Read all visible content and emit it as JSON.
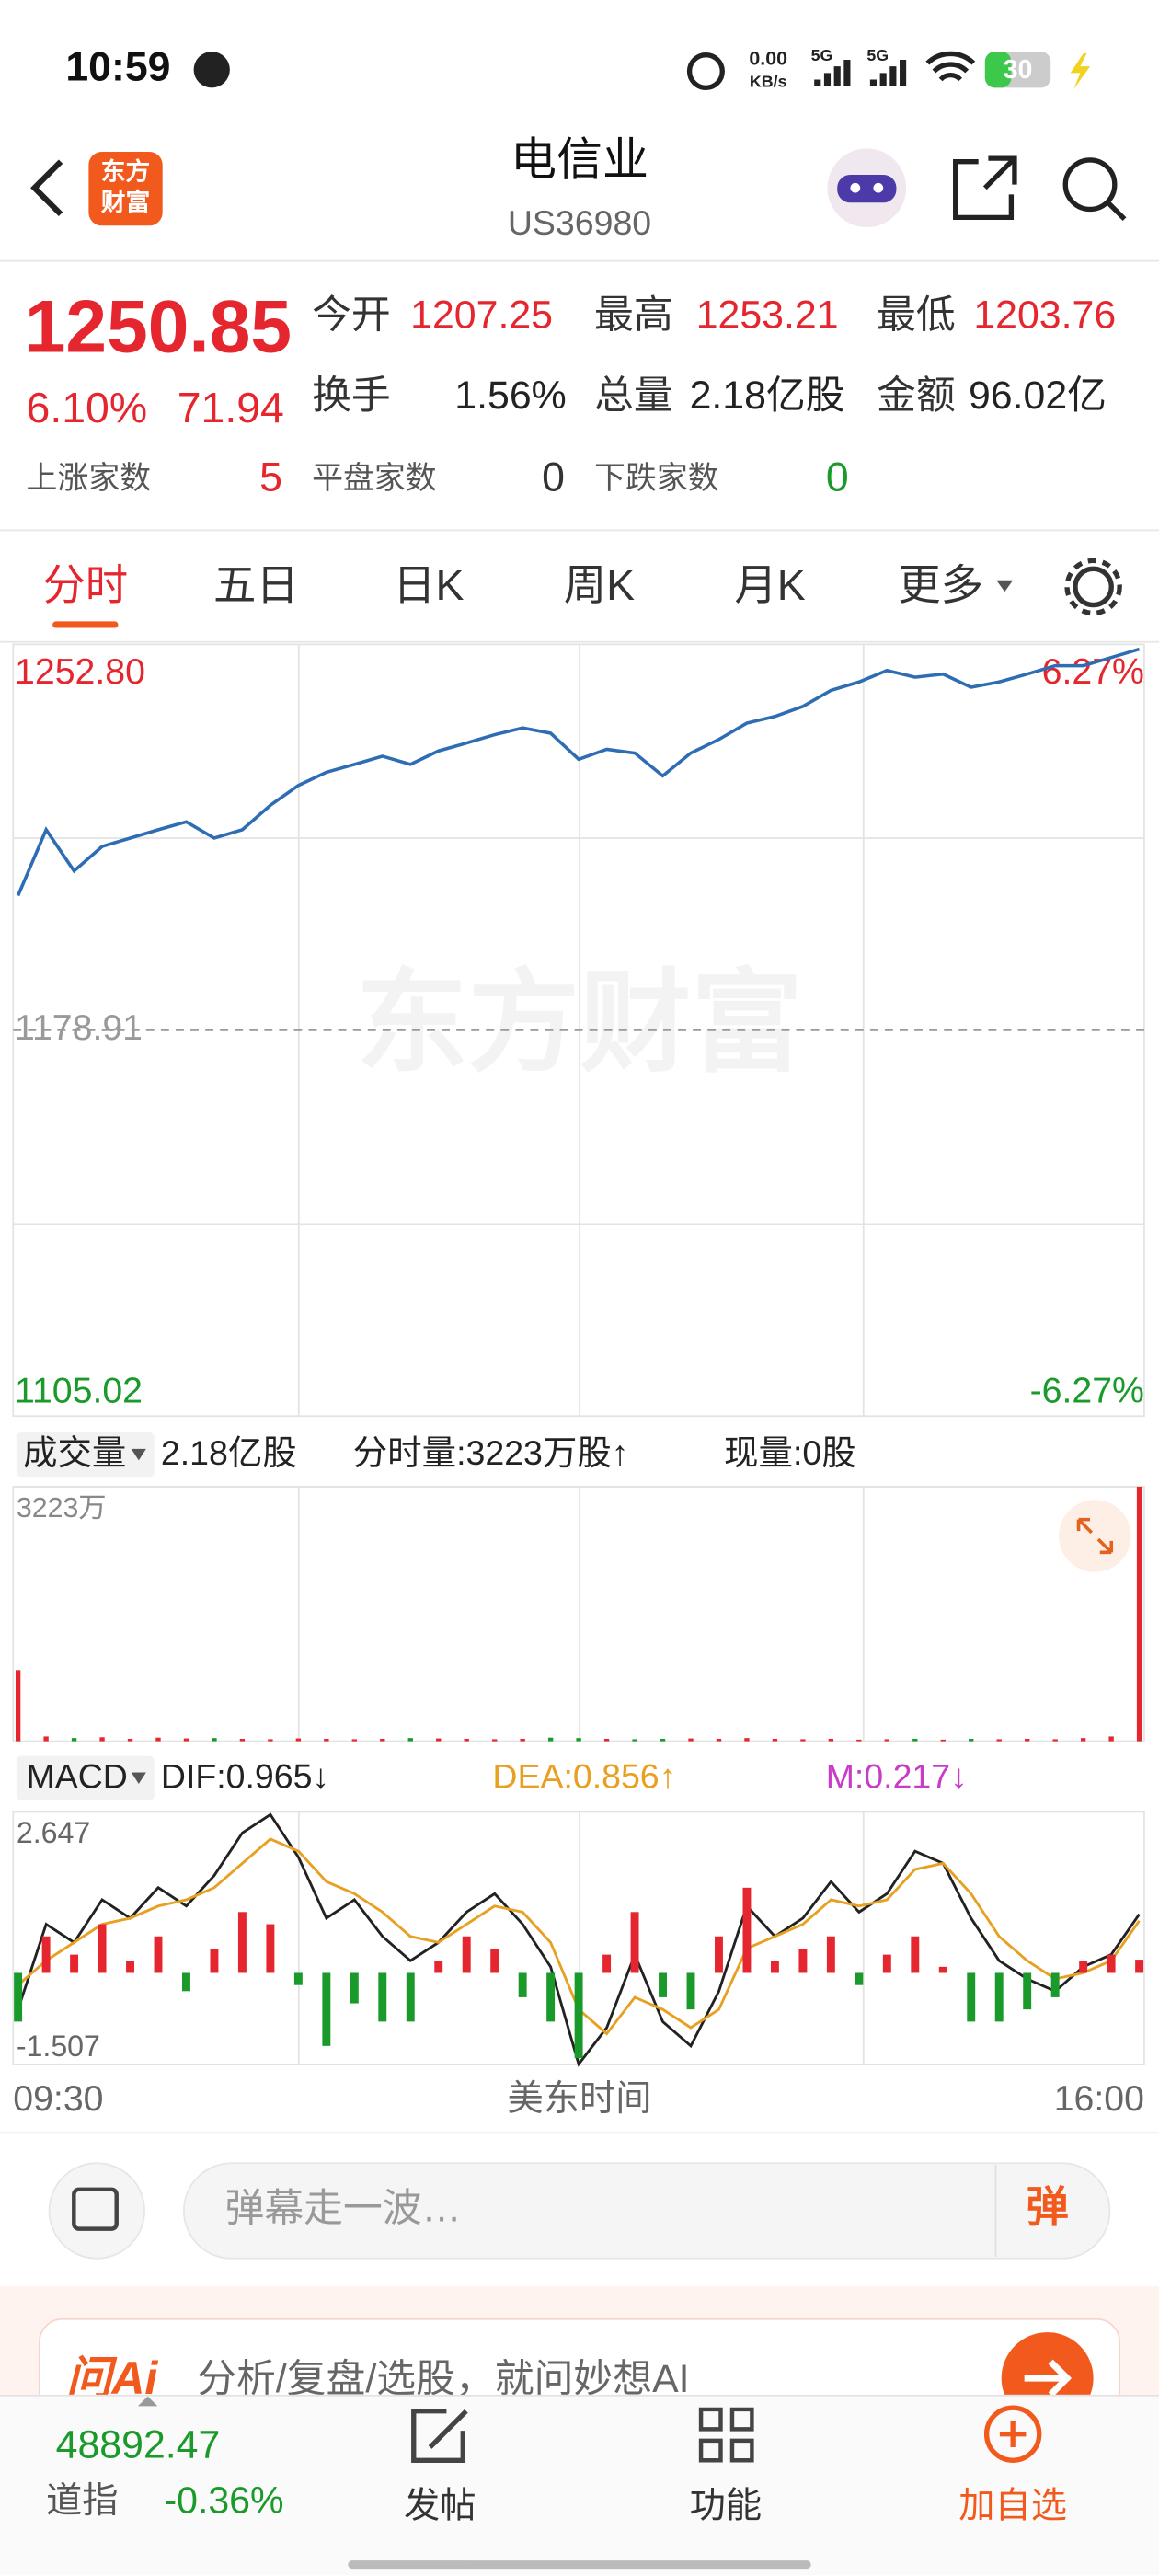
{
  "status": {
    "time": "10:59",
    "speed": "0.00",
    "speed_unit": "KB/s",
    "net1": "5G",
    "net2": "5G",
    "battery": "30"
  },
  "header": {
    "logo": [
      "东方",
      "财富"
    ],
    "title": "电信业",
    "code": "US36980"
  },
  "quote": {
    "price": "1250.85",
    "change_pct": "6.10%",
    "change": "71.94",
    "fields": [
      {
        "label": "今开",
        "value": "1207.25"
      },
      {
        "label": "最高",
        "value": "1253.21"
      },
      {
        "label": "最低",
        "value": "1203.76"
      },
      {
        "label": "换手",
        "value": "1.56%"
      },
      {
        "label": "总量",
        "value": "2.18亿股"
      },
      {
        "label": "金额",
        "value": "96.02亿"
      }
    ],
    "breadth": [
      {
        "label": "上涨家数",
        "value": "5"
      },
      {
        "label": "平盘家数",
        "value": "0"
      },
      {
        "label": "下跌家数",
        "value": "0"
      }
    ]
  },
  "tabs": [
    "分时",
    "五日",
    "日K",
    "周K",
    "月K",
    "更多"
  ],
  "chart_data": [
    {
      "type": "line",
      "watermark": "东方财富",
      "color": "#2e6db4",
      "grid": true,
      "ylim": [
        1105.02,
        1252.8
      ],
      "yticks": [
        {
          "value": 1252.8,
          "label": "1252.80"
        },
        1178.91,
        1105.02
      ],
      "y2lim": [
        -6.27,
        6.27
      ],
      "y2ticks": [
        {
          "value": 6.27,
          "label": "6.27%"
        },
        {
          "value": -6.27,
          "label": "-6.27%"
        }
      ],
      "values": [
        1204.7,
        1217.3,
        1209.4,
        1214.1,
        1215.7,
        1217.3,
        1218.8,
        1215.7,
        1217.3,
        1222.0,
        1225.8,
        1228.3,
        1229.8,
        1231.4,
        1229.8,
        1232.4,
        1233.9,
        1235.5,
        1236.8,
        1235.8,
        1230.8,
        1232.7,
        1232.0,
        1227.6,
        1232.0,
        1234.6,
        1237.7,
        1239.0,
        1240.9,
        1244.0,
        1245.6,
        1247.8,
        1246.5,
        1247.1,
        1244.6,
        1245.6,
        1247.1,
        1248.7,
        1248.7,
        1250.3,
        1251.9
      ]
    },
    {
      "type": "bar",
      "header": [
        "成交量",
        "2.18亿股",
        "分时量:3223万股↑",
        "现量:0股"
      ],
      "up_color": "#e5262e",
      "down_color": "#1a9a2a",
      "ylim": [
        0,
        3223
      ],
      "yticks": [
        {
          "value": 3223,
          "label": "3223万"
        }
      ],
      "values": [
        900,
        60,
        40,
        50,
        30,
        45,
        35,
        40,
        30,
        25,
        35,
        30,
        25,
        30,
        40,
        35,
        30,
        25,
        30,
        45,
        40,
        30,
        25,
        30,
        35,
        30,
        40,
        30,
        25,
        30,
        20,
        25,
        30,
        20,
        30,
        25,
        30,
        25,
        40,
        60,
        3223
      ]
    },
    {
      "type": "macd",
      "header": [
        "MACD",
        "DIF:0.965↓",
        "DEA:0.856↑",
        "M:0.217↓"
      ],
      "ylim": [
        -1.507,
        2.647
      ],
      "yticks": [
        2.647,
        -1.507
      ],
      "series": [
        {
          "name": "DIF",
          "color": "#222222",
          "values": [
            -0.6,
            0.8,
            0.5,
            1.2,
            0.9,
            1.4,
            1.1,
            1.6,
            2.3,
            2.6,
            1.9,
            0.9,
            1.2,
            0.6,
            0.2,
            0.5,
            1.0,
            1.3,
            0.8,
            0.1,
            -1.5,
            -0.9,
            0.3,
            -0.8,
            -1.2,
            -0.3,
            1.1,
            0.6,
            0.9,
            1.5,
            1.0,
            1.3,
            2.0,
            1.8,
            0.9,
            0.2,
            -0.1,
            -0.3,
            0.1,
            0.3,
            0.965
          ]
        },
        {
          "name": "DEA",
          "color": "#e8a020",
          "values": [
            -0.2,
            0.2,
            0.5,
            0.8,
            0.9,
            1.1,
            1.2,
            1.4,
            1.8,
            2.2,
            2.0,
            1.5,
            1.3,
            1.0,
            0.6,
            0.5,
            0.8,
            1.1,
            1.0,
            0.5,
            -0.6,
            -1.0,
            -0.4,
            -0.6,
            -0.9,
            -0.6,
            0.4,
            0.6,
            0.8,
            1.2,
            1.1,
            1.2,
            1.7,
            1.8,
            1.3,
            0.6,
            0.2,
            -0.1,
            0.0,
            0.2,
            0.856
          ]
        },
        {
          "name": "M",
          "color": "#e5262e",
          "down_color": "#1a9a2a",
          "values": [
            -0.8,
            0.6,
            0.3,
            0.8,
            0.2,
            0.6,
            -0.3,
            0.4,
            1.0,
            0.8,
            -0.2,
            -1.2,
            -0.5,
            -0.8,
            -0.8,
            0.2,
            0.6,
            0.4,
            -0.4,
            -0.8,
            -1.4,
            0.3,
            1.0,
            -0.4,
            -0.6,
            0.6,
            1.4,
            0.2,
            0.4,
            0.6,
            -0.2,
            0.3,
            0.6,
            0.1,
            -0.8,
            -0.8,
            -0.6,
            -0.4,
            0.2,
            0.3,
            0.217
          ]
        }
      ]
    }
  ],
  "time_axis": [
    "09:30",
    "美东时间",
    "16:00"
  ],
  "comment": {
    "placeholder": "弹幕走一波…",
    "button": "弹"
  },
  "ai_banner": {
    "logo": "问Ai",
    "text": "分析/复盘/选股，就问妙想AI"
  },
  "nav": {
    "index_value": "48892.47",
    "index_name": "道指",
    "index_change": "-0.36%",
    "items": [
      "发帖",
      "功能",
      "加自选"
    ]
  }
}
